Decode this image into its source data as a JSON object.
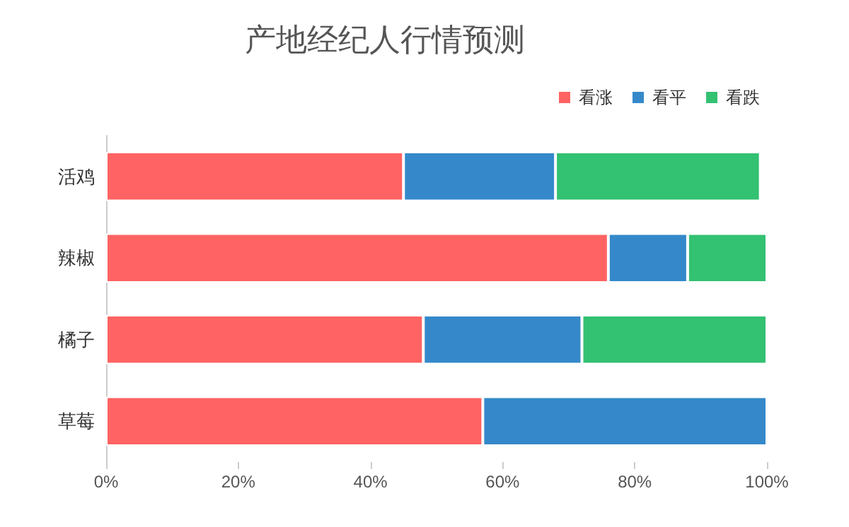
{
  "chart_data": {
    "type": "bar",
    "title": "产地经纪人行情预测",
    "orientation": "horizontal",
    "stacked": true,
    "categories": [
      "活鸡",
      "辣椒",
      "橘子",
      "草莓"
    ],
    "series": [
      {
        "name": "看涨",
        "color": "#ff6363",
        "values": [
          45,
          76,
          48,
          57
        ]
      },
      {
        "name": "看平",
        "color": "#3589ca",
        "values": [
          23,
          12,
          24,
          43
        ]
      },
      {
        "name": "看跌",
        "color": "#33c172",
        "values": [
          31,
          12,
          28,
          0
        ]
      }
    ],
    "xlim": [
      0,
      100
    ],
    "xticks": [
      {
        "value": 0,
        "label": "0%"
      },
      {
        "value": 20,
        "label": "20%"
      },
      {
        "value": 40,
        "label": "40%"
      },
      {
        "value": 60,
        "label": "60%"
      },
      {
        "value": 80,
        "label": "80%"
      },
      {
        "value": 100,
        "label": "100%"
      }
    ],
    "grid": false,
    "legend": "top right"
  }
}
